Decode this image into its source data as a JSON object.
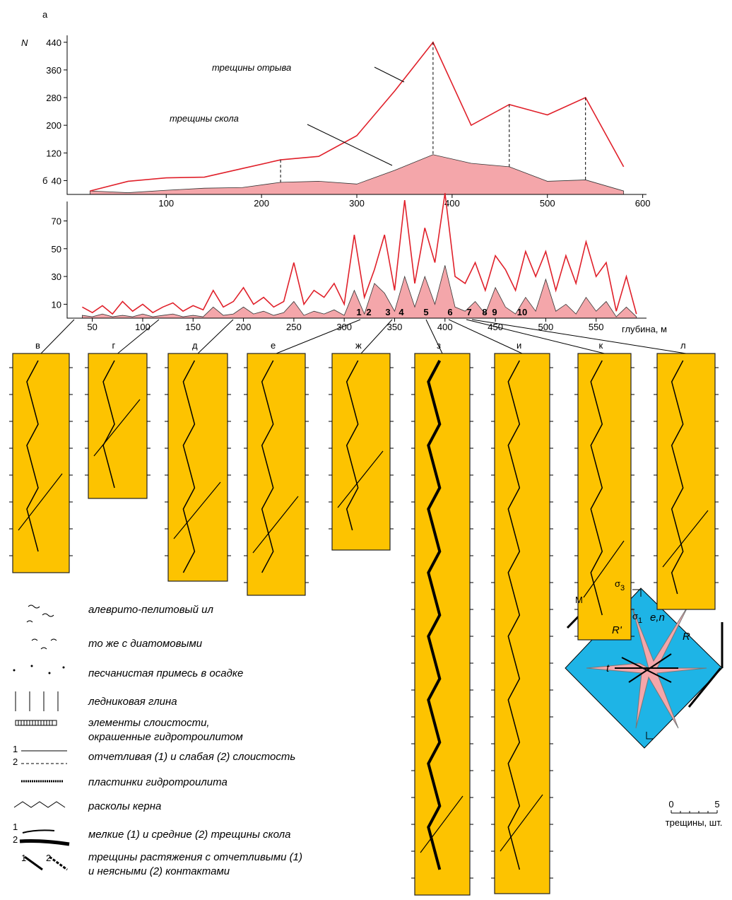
{
  "chart_data": [
    {
      "type": "line",
      "panel": "а",
      "ylabel": "N",
      "x": [
        20,
        60,
        100,
        140,
        180,
        220,
        260,
        300,
        340,
        380,
        420,
        460,
        500,
        540,
        580
      ],
      "series": [
        {
          "name": "трещины отрыва",
          "color": "#e0202a",
          "kind": "line",
          "values": [
            10,
            38,
            48,
            50,
            75,
            100,
            110,
            170,
            300,
            440,
            200,
            260,
            230,
            280,
            80
          ]
        },
        {
          "name": "трещины скола",
          "color": "#f4a6aa",
          "kind": "area",
          "values": [
            10,
            5,
            12,
            18,
            20,
            35,
            38,
            30,
            70,
            115,
            90,
            80,
            38,
            42,
            10
          ]
        }
      ],
      "xlim": [
        -4,
        604
      ],
      "ylim": [
        0,
        460
      ],
      "xticks": [
        100,
        200,
        300,
        400,
        500,
        600
      ],
      "yticks": [
        40,
        120,
        200,
        280,
        360,
        440
      ]
    },
    {
      "type": "line",
      "panel": "б",
      "xlabel": "глубина, м",
      "intervals": [
        "1",
        "2",
        "3",
        "4",
        "5",
        "6",
        "7",
        "8",
        "9",
        "10"
      ],
      "x": [
        40,
        50,
        60,
        70,
        80,
        90,
        100,
        110,
        120,
        130,
        140,
        150,
        160,
        170,
        180,
        190,
        200,
        210,
        220,
        230,
        240,
        250,
        260,
        270,
        280,
        290,
        300,
        310,
        320,
        330,
        340,
        350,
        360,
        370,
        380,
        390,
        400,
        410,
        420,
        430,
        440,
        450,
        460,
        470,
        480,
        490,
        500,
        510,
        520,
        530,
        540,
        550,
        560,
        570,
        580,
        590
      ],
      "series": [
        {
          "color": "#e0202a",
          "kind": "line",
          "values": [
            8,
            4,
            9,
            3,
            12,
            5,
            10,
            4,
            8,
            11,
            5,
            9,
            6,
            20,
            8,
            12,
            22,
            10,
            15,
            8,
            12,
            40,
            10,
            20,
            15,
            25,
            10,
            60,
            15,
            35,
            60,
            20,
            85,
            25,
            65,
            40,
            90,
            30,
            25,
            40,
            20,
            45,
            35,
            20,
            48,
            30,
            48,
            20,
            45,
            25,
            55,
            30,
            40,
            5,
            30,
            3
          ]
        },
        {
          "color": "#f4a6aa",
          "kind": "area",
          "values": [
            2,
            1,
            3,
            1,
            2,
            1,
            3,
            1,
            2,
            3,
            1,
            2,
            1,
            8,
            2,
            3,
            8,
            3,
            5,
            2,
            4,
            12,
            2,
            5,
            3,
            6,
            2,
            20,
            3,
            25,
            18,
            5,
            30,
            8,
            30,
            10,
            38,
            8,
            5,
            12,
            3,
            22,
            8,
            3,
            15,
            5,
            28,
            5,
            10,
            3,
            15,
            5,
            12,
            1,
            8,
            1
          ]
        }
      ],
      "xlim": [
        25,
        600
      ],
      "ylim": [
        0,
        84
      ],
      "xticks": [
        50,
        100,
        150,
        200,
        250,
        300,
        350,
        400,
        450,
        500,
        550
      ],
      "yticks": [
        10,
        30,
        50,
        70
      ]
    }
  ],
  "columns": [
    "в",
    "г",
    "д",
    "е",
    "ж",
    "з",
    "и",
    "к",
    "л"
  ],
  "legend": [
    {
      "text": [
        "алеврито-пелитовый ил"
      ]
    },
    {
      "text": [
        "то же с диатомовыми"
      ]
    },
    {
      "text": [
        "песчанистая примесь в осадке"
      ]
    },
    {
      "text": [
        "ледниковая глина"
      ]
    },
    {
      "text": [
        "элементы слоистости,",
        "окрашенные гидротроилитом"
      ]
    },
    {
      "text": [
        "отчетливая (1) и слабая (2) слоистость"
      ],
      "markers": [
        "1",
        "2"
      ]
    },
    {
      "text": [
        "пластинки гидротроилита"
      ]
    },
    {
      "text": [
        "расколы керна"
      ]
    },
    {
      "text": [
        "мелкие (1) и средние (2) трещины скола"
      ],
      "markers": [
        "1",
        "2"
      ]
    },
    {
      "text": [
        "трещины растяжения с отчетливыми (1)",
        "и неясными (2) контактами"
      ],
      "markers": [
        "1",
        "2"
      ]
    }
  ],
  "diagram": {
    "label": "М",
    "sigma3": {
      "symbol": "σ",
      "sub": "3"
    },
    "sigma1": {
      "symbol": "σ",
      "sub": "1"
    },
    "en": "e,n",
    "rprime": "R'",
    "r": "R",
    "t": "t",
    "scale": [
      "0",
      "5"
    ],
    "unit": "трещины, шт."
  }
}
